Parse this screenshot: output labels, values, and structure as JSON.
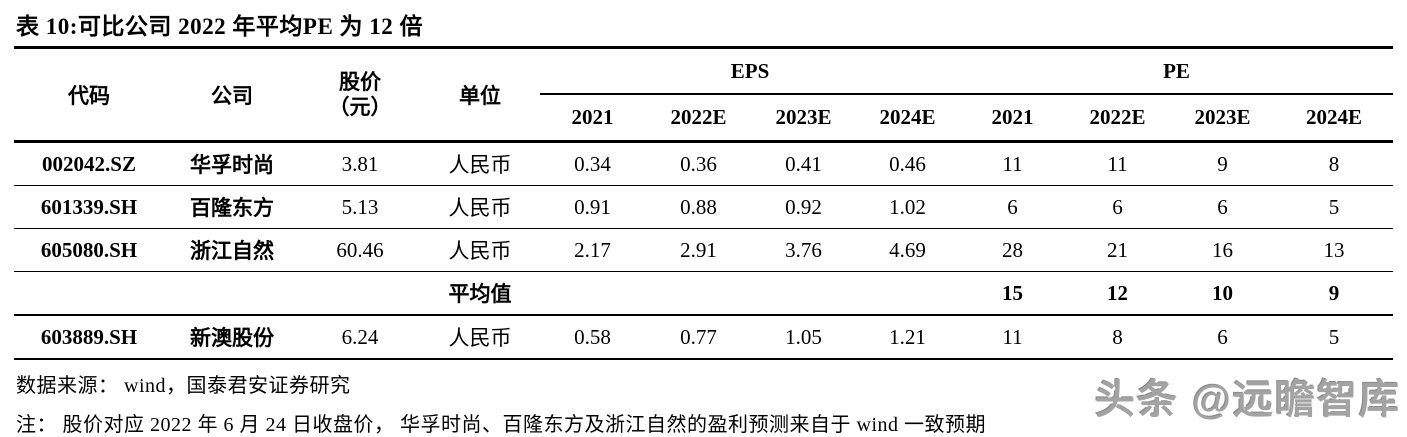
{
  "table": {
    "title": "表 10:可比公司 2022 年平均PE 为 12 倍",
    "headers": {
      "code": "代码",
      "company": "公司",
      "price_line1": "股价",
      "price_line2": "（元）",
      "unit": "单位",
      "eps_group": "EPS",
      "pe_group": "PE",
      "eps_years": [
        "2021",
        "2022E",
        "2023E",
        "2024E"
      ],
      "pe_years": [
        "2021",
        "2022E",
        "2023E",
        "2024E"
      ]
    },
    "rows": [
      {
        "code": "002042.SZ",
        "company": "华孚时尚",
        "price": "3.81",
        "unit": "人民币",
        "eps": [
          "0.34",
          "0.36",
          "0.41",
          "0.46"
        ],
        "pe": [
          "11",
          "11",
          "9",
          "8"
        ]
      },
      {
        "code": "601339.SH",
        "company": "百隆东方",
        "price": "5.13",
        "unit": "人民币",
        "eps": [
          "0.91",
          "0.88",
          "0.92",
          "1.02"
        ],
        "pe": [
          "6",
          "6",
          "6",
          "5"
        ]
      },
      {
        "code": "605080.SH",
        "company": "浙江自然",
        "price": "60.46",
        "unit": "人民币",
        "eps": [
          "2.17",
          "2.91",
          "3.76",
          "4.69"
        ],
        "pe": [
          "28",
          "21",
          "16",
          "13"
        ]
      }
    ],
    "average_row": {
      "label": "平均值",
      "pe": [
        "15",
        "12",
        "10",
        "9"
      ]
    },
    "extra_row": {
      "code": "603889.SH",
      "company": "新澳股份",
      "price": "6.24",
      "unit": "人民币",
      "eps": [
        "0.58",
        "0.77",
        "1.05",
        "1.21"
      ],
      "pe": [
        "11",
        "8",
        "6",
        "5"
      ]
    }
  },
  "footer": {
    "source": "数据来源： wind，国泰君安证券研究",
    "note": "注： 股价对应 2022 年 6 月 24 日收盘价， 华孚时尚、百隆东方及浙江自然的盈利预测来自于 wind 一致预期",
    "watermark": "头条 @远瞻智库"
  }
}
